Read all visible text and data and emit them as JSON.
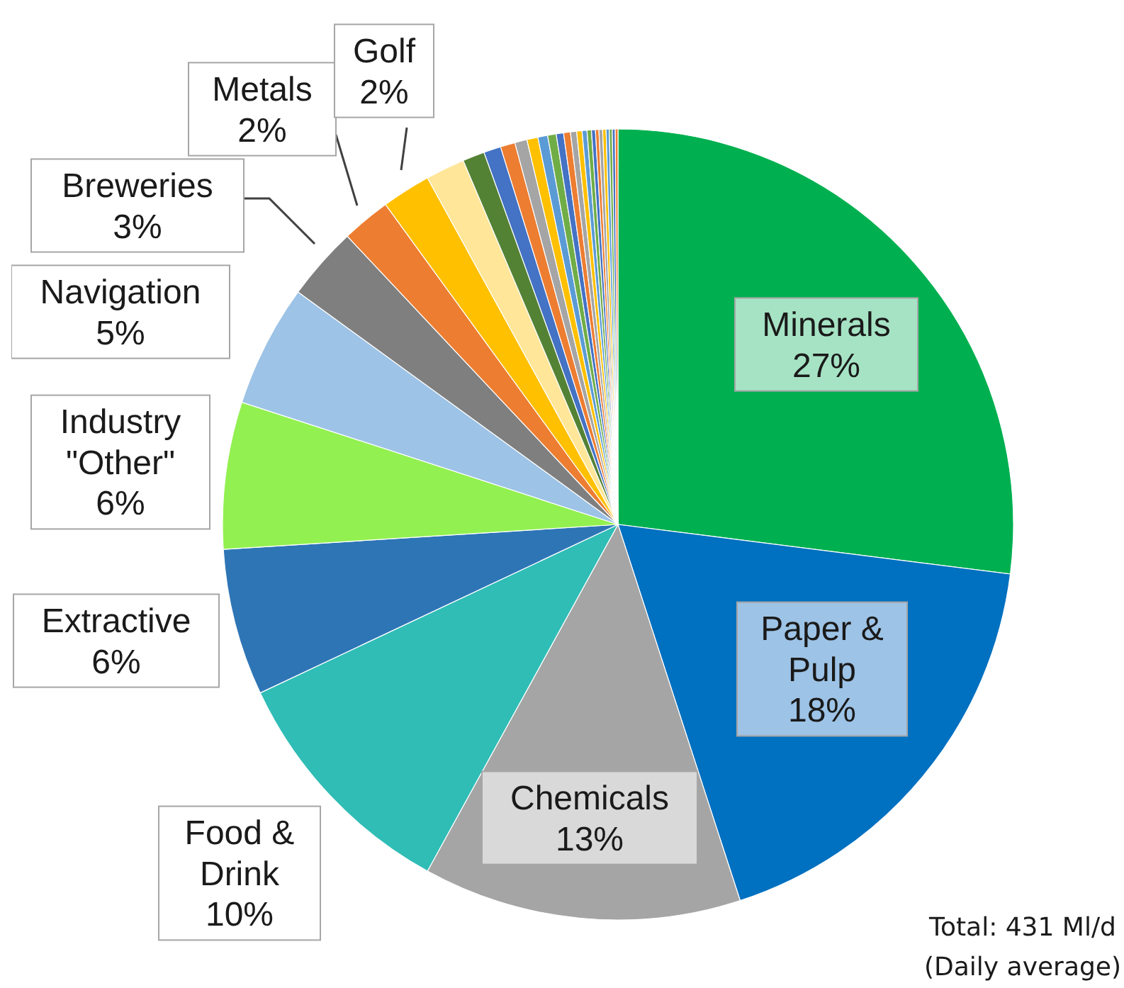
{
  "chart_data": {
    "type": "pie",
    "categories": [
      "Minerals",
      "Paper & Pulp",
      "Chemicals",
      "Food & Drink",
      "Extractive",
      "Industry \"Other\"",
      "Navigation",
      "Breweries",
      "Metals",
      "Golf",
      null,
      null,
      null,
      null,
      null,
      null,
      null,
      null,
      null,
      null,
      null,
      null,
      null,
      null,
      null,
      null,
      null,
      null,
      null,
      null,
      null,
      null
    ],
    "values": [
      27,
      18,
      13,
      10,
      6,
      6,
      5,
      3,
      2,
      2,
      1.6,
      0.9,
      0.7,
      0.6,
      0.5,
      0.45,
      0.4,
      0.35,
      0.3,
      0.28,
      0.25,
      0.22,
      0.2,
      0.18,
      0.16,
      0.14,
      0.15,
      0.14,
      0.13,
      0.12,
      0.12,
      0.11
    ],
    "value_labels": [
      "27%",
      "18%",
      "13%",
      "10%",
      "6%",
      "6%",
      "5%",
      "3%",
      "2%",
      "2%",
      null,
      null,
      null,
      null,
      null,
      null,
      null,
      null,
      null,
      null,
      null,
      null,
      null,
      null,
      null,
      null,
      null,
      null,
      null,
      null,
      null,
      null
    ],
    "colors": [
      "#00b050",
      "#0070c0",
      "#a5a5a5",
      "#2fbdb6",
      "#2e75b6",
      "#92f050",
      "#9dc3e6",
      "#7f7f7f",
      "#ed7d31",
      "#ffc000",
      "#ffe699",
      "#548235",
      "#4472c4",
      "#ed7d31",
      "#a5a5a5",
      "#ffc000",
      "#5b9bd5",
      "#70ad47",
      "#4472c4",
      "#ed7d31",
      "#a5a5a5",
      "#ffc000",
      "#5b9bd5",
      "#70ad47",
      "#4472c4",
      "#ed7d31",
      "#a5a5a5",
      "#ffc000",
      "#5b9bd5",
      "#70ad47",
      "#4472c4",
      "#ed7d31"
    ],
    "annotations": [
      "Total: 431 Ml/d",
      "(Daily average)"
    ],
    "legend": false
  }
}
